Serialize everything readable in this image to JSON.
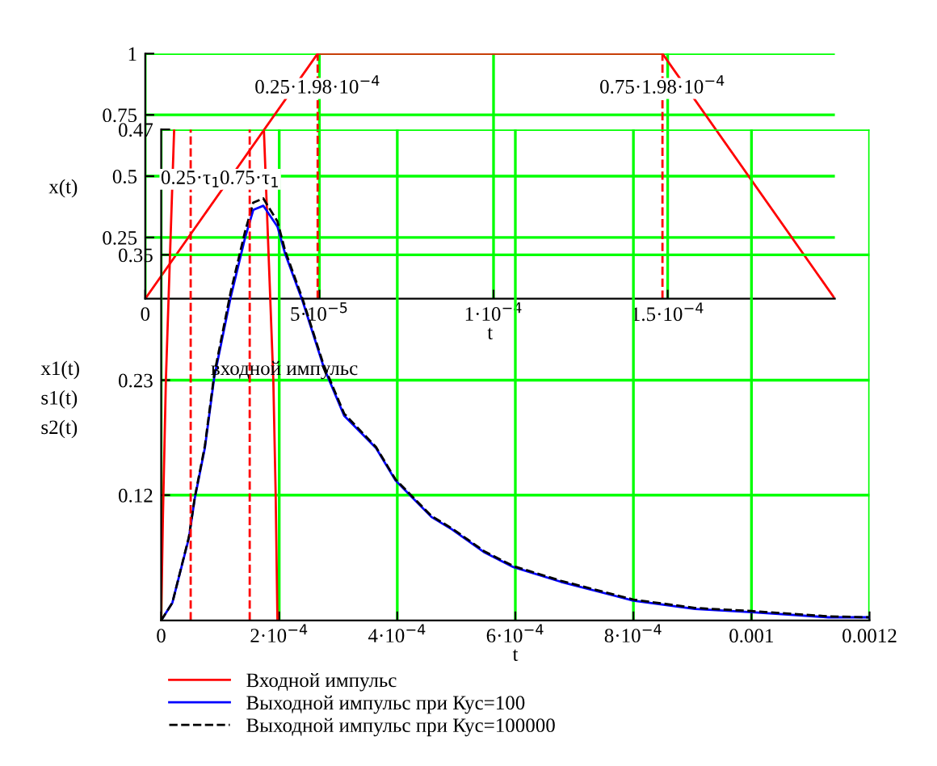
{
  "chart_data": [
    {
      "type": "line",
      "xlabel": "t",
      "ylabel": "x(t)",
      "xlim": [
        0,
        0.000198
      ],
      "ylim": [
        0,
        1
      ],
      "xticks": [
        0,
        {
          "value": 5e-05,
          "label": "5·10$^{−5}$"
        },
        {
          "value": 0.0001,
          "label": "1·10$^{−4}$"
        },
        {
          "value": 0.00015,
          "label": "1.5·10$^{−4}$"
        }
      ],
      "yticks": [
        0.25,
        0.5,
        0.75,
        1
      ],
      "grid": true,
      "legend": false,
      "series": [
        {
          "color": "#ff0000",
          "x": [
            0,
            4.95e-05,
            0.0001485,
            0.000198
          ],
          "values": [
            0,
            1,
            1,
            0
          ]
        }
      ],
      "ref_lines": [
        {
          "axis": "x",
          "value": 4.95e-05,
          "label": "0.25·1.98·10$^{−4}$",
          "color": "#ff0000",
          "line_style": "dashed"
        },
        {
          "axis": "x",
          "value": 0.0001485,
          "label": "0.75·1.98·10$^{−4}$",
          "color": "#ff0000",
          "line_style": "dashed"
        }
      ]
    },
    {
      "type": "line",
      "xlabel": "t",
      "ylabel": "x1(t)\ns1(t)\ns2(t)",
      "xlim": [
        0,
        0.0012
      ],
      "ylim": [
        0,
        0.47
      ],
      "xticks": [
        0,
        {
          "value": 0.0002,
          "label": "2·10$^{−4}$"
        },
        {
          "value": 0.0004,
          "label": "4·10$^{−4}$"
        },
        {
          "value": 0.0006,
          "label": "6·10$^{−4}$"
        },
        {
          "value": 0.0008,
          "label": "8·10$^{−4}$"
        },
        0.001,
        0.0012
      ],
      "yticks": [
        0.12,
        0.23,
        0.35,
        0.47
      ],
      "grid": true,
      "legend": "bottom",
      "annotations": [
        "входной импульс"
      ],
      "series": [
        {
          "name": "Входной импульс",
          "color": "#ff0000",
          "line_style": "solid",
          "x": [
            0,
            3e-06,
            8e-06,
            1.5e-05,
            2.2e-05,
            0.0001,
            0.000174,
            0.00019,
            0.000194,
            0.000197
          ],
          "values": [
            0,
            0.1,
            0.23,
            0.35,
            0.47,
            null,
            0.47,
            0.23,
            0.12,
            0
          ]
        },
        {
          "name": "Выходной импульс при Кус=100",
          "color": "#0000ff",
          "line_style": "solid",
          "x": [
            0,
            1.9e-05,
            4.7e-05,
            5.7e-05,
            7.4e-05,
            9e-05,
            0.000118,
            0.000142,
            0.000156,
            0.000173,
            0.000197,
            0.00021,
            0.00024,
            0.000275,
            0.00031,
            0.000364,
            0.000397,
            0.000458,
            0.000493,
            0.000548,
            0.000597,
            0.000677,
            0.0008,
            0.000904,
            0.001,
            0.00113,
            0.0012
          ],
          "values": [
            0,
            0.017,
            0.079,
            0.117,
            0.165,
            0.233,
            0.31,
            0.366,
            0.393,
            0.397,
            0.377,
            0.351,
            0.305,
            0.243,
            0.196,
            0.165,
            0.134,
            0.099,
            0.087,
            0.065,
            0.051,
            0.037,
            0.019,
            0.011,
            0.008,
            0.003,
            0.003
          ]
        },
        {
          "name": "Выходной импульс при Кус=100000",
          "color": "#000000",
          "line_style": "dashed",
          "x": [
            0,
            1.9e-05,
            4.7e-05,
            5.7e-05,
            7.4e-05,
            9e-05,
            0.000118,
            0.000142,
            0.000156,
            0.000173,
            0.000197,
            0.00021,
            0.00024,
            0.000275,
            0.00031,
            0.000364,
            0.000397,
            0.000458,
            0.000493,
            0.000548,
            0.000597,
            0.000677,
            0.0008,
            0.000904,
            0.001,
            0.00113,
            0.0012
          ],
          "values": [
            0,
            0.017,
            0.08,
            0.118,
            0.167,
            0.236,
            0.315,
            0.372,
            0.4,
            0.404,
            0.382,
            0.354,
            0.307,
            0.245,
            0.198,
            0.166,
            0.135,
            0.1,
            0.088,
            0.066,
            0.052,
            0.038,
            0.02,
            0.012,
            0.009,
            0.004,
            0.003
          ]
        }
      ],
      "ref_lines": [
        {
          "axis": "x",
          "value": 5e-05,
          "label": "0.25·τ$_{1}$",
          "color": "#ff0000",
          "line_style": "dashed"
        },
        {
          "axis": "x",
          "value": 0.00015,
          "label": "0.75·τ$_{1}$",
          "color": "#ff0000",
          "line_style": "dashed"
        }
      ]
    }
  ]
}
